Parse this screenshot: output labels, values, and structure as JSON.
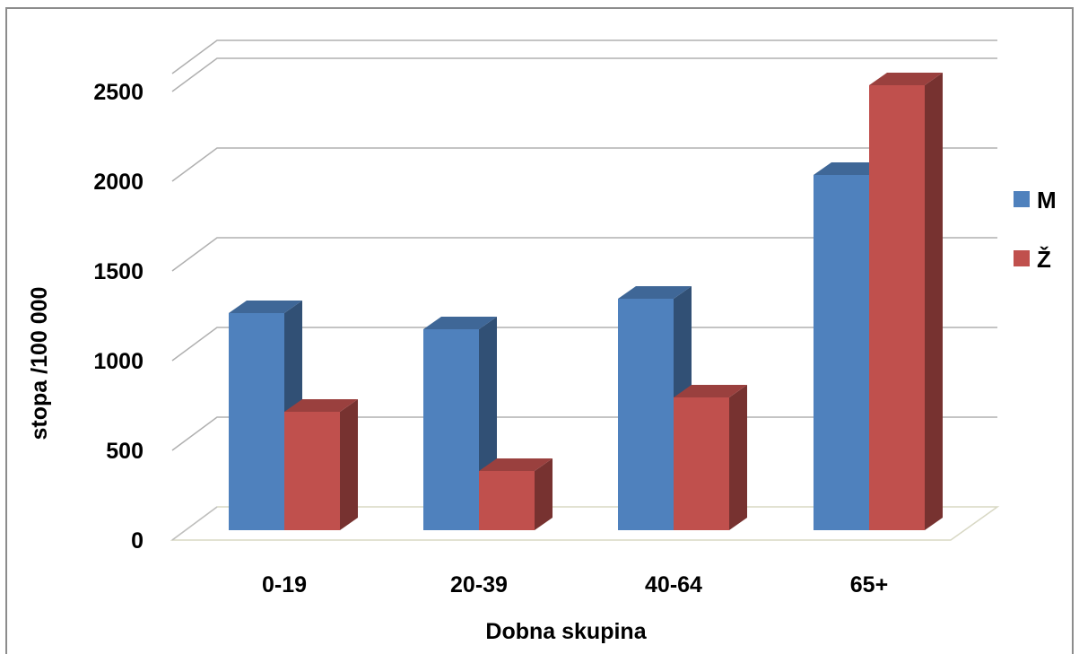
{
  "chart_data": {
    "type": "bar",
    "style": "3d-clustered-column",
    "title": "",
    "xlabel": "Dobna skupina",
    "ylabel": "stopa /100 000",
    "categories": [
      "0-19",
      "20-39",
      "40-64",
      "65+"
    ],
    "yticks": [
      "0",
      "500",
      "1000",
      "1500",
      "2000",
      "2500"
    ],
    "ylim": [
      0,
      2500
    ],
    "grid": true,
    "legend_position": "right",
    "series": [
      {
        "name": "M",
        "color": "#4F81BD",
        "values": [
          1210,
          1120,
          1290,
          1980
        ]
      },
      {
        "name": "Ž",
        "color": "#C0504D",
        "values": [
          660,
          330,
          740,
          2480
        ]
      }
    ]
  }
}
